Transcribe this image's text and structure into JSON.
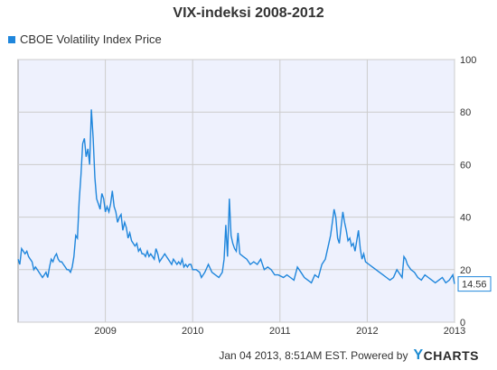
{
  "chart_data": {
    "type": "line",
    "title": "VIX-indeksi 2008-2012",
    "xlabel": "",
    "ylabel": "",
    "legend_position": "top-left",
    "grid": true,
    "ylim": [
      0,
      100
    ],
    "y_ticks": [
      "0",
      "20",
      "40",
      "60",
      "80",
      "100"
    ],
    "xlim": [
      2008.0,
      2013.0
    ],
    "x_ticks": [
      {
        "value": 2009,
        "label": "2009"
      },
      {
        "value": 2010,
        "label": "2010"
      },
      {
        "value": 2011,
        "label": "2011"
      },
      {
        "value": 2012,
        "label": "2012"
      },
      {
        "value": 2013,
        "label": "2013"
      }
    ],
    "last_value_label": "14.56",
    "colors": {
      "line": "#1f86dc",
      "plot_background": "#eef1fd",
      "grid": "#cccccc"
    },
    "series": [
      {
        "name": "CBOE Volatility Index Price",
        "x": [
          2008.0,
          2008.02,
          2008.04,
          2008.06,
          2008.08,
          2008.1,
          2008.12,
          2008.14,
          2008.16,
          2008.18,
          2008.2,
          2008.22,
          2008.24,
          2008.26,
          2008.28,
          2008.3,
          2008.32,
          2008.34,
          2008.36,
          2008.38,
          2008.4,
          2008.42,
          2008.44,
          2008.46,
          2008.48,
          2008.5,
          2008.52,
          2008.54,
          2008.56,
          2008.58,
          2008.6,
          2008.62,
          2008.64,
          2008.66,
          2008.68,
          2008.7,
          2008.72,
          2008.74,
          2008.76,
          2008.78,
          2008.8,
          2008.82,
          2008.84,
          2008.86,
          2008.88,
          2008.9,
          2008.92,
          2008.94,
          2008.96,
          2008.98,
          2009.0,
          2009.02,
          2009.04,
          2009.06,
          2009.08,
          2009.1,
          2009.12,
          2009.14,
          2009.16,
          2009.18,
          2009.2,
          2009.22,
          2009.24,
          2009.26,
          2009.28,
          2009.3,
          2009.32,
          2009.34,
          2009.36,
          2009.38,
          2009.4,
          2009.42,
          2009.44,
          2009.46,
          2009.48,
          2009.5,
          2009.52,
          2009.54,
          2009.56,
          2009.58,
          2009.6,
          2009.62,
          2009.64,
          2009.66,
          2009.68,
          2009.7,
          2009.72,
          2009.74,
          2009.76,
          2009.78,
          2009.8,
          2009.82,
          2009.84,
          2009.86,
          2009.88,
          2009.9,
          2009.92,
          2009.94,
          2009.96,
          2009.98,
          2010.0,
          2010.04,
          2010.08,
          2010.1,
          2010.14,
          2010.18,
          2010.22,
          2010.26,
          2010.3,
          2010.32,
          2010.34,
          2010.36,
          2010.38,
          2010.4,
          2010.42,
          2010.44,
          2010.46,
          2010.48,
          2010.5,
          2010.52,
          2010.54,
          2010.58,
          2010.62,
          2010.66,
          2010.7,
          2010.74,
          2010.78,
          2010.82,
          2010.86,
          2010.9,
          2010.94,
          2010.98,
          2011.04,
          2011.08,
          2011.12,
          2011.16,
          2011.2,
          2011.24,
          2011.28,
          2011.32,
          2011.36,
          2011.4,
          2011.44,
          2011.48,
          2011.52,
          2011.56,
          2011.58,
          2011.6,
          2011.62,
          2011.64,
          2011.66,
          2011.68,
          2011.7,
          2011.72,
          2011.74,
          2011.76,
          2011.78,
          2011.8,
          2011.82,
          2011.84,
          2011.86,
          2011.88,
          2011.9,
          2011.92,
          2011.94,
          2011.96,
          2011.98,
          2012.02,
          2012.06,
          2012.1,
          2012.14,
          2012.18,
          2012.22,
          2012.26,
          2012.3,
          2012.34,
          2012.38,
          2012.4,
          2012.42,
          2012.44,
          2012.46,
          2012.5,
          2012.54,
          2012.58,
          2012.62,
          2012.66,
          2012.7,
          2012.74,
          2012.78,
          2012.82,
          2012.86,
          2012.9,
          2012.94,
          2012.98,
          2013.0
        ],
        "y": [
          24,
          22,
          28,
          27,
          26,
          27,
          25,
          24,
          23,
          20,
          21,
          20,
          19,
          18,
          17,
          18,
          19,
          17,
          21,
          24,
          23,
          25,
          26,
          24,
          23,
          23,
          22,
          21,
          20,
          20,
          19,
          21,
          25,
          33,
          32,
          46,
          56,
          68,
          70,
          63,
          66,
          60,
          81,
          70,
          55,
          47,
          45,
          43,
          49,
          47,
          42,
          44,
          42,
          45,
          50,
          44,
          42,
          38,
          40,
          41,
          35,
          38,
          36,
          32,
          34,
          31,
          30,
          29,
          30,
          27,
          28,
          26,
          26,
          25,
          27,
          25,
          26,
          25,
          24,
          28,
          26,
          23,
          24,
          25,
          26,
          25,
          24,
          23,
          22,
          24,
          23,
          22,
          23,
          22,
          24,
          21,
          22,
          21,
          22,
          22,
          20,
          20,
          19,
          17,
          19,
          22,
          19,
          18,
          17,
          18,
          19,
          24,
          37,
          25,
          47,
          33,
          30,
          28,
          27,
          34,
          26,
          25,
          24,
          22,
          23,
          22,
          24,
          20,
          21,
          20,
          18,
          18,
          17,
          18,
          17,
          16,
          21,
          19,
          17,
          16,
          15,
          18,
          17,
          22,
          24,
          30,
          33,
          38,
          43,
          40,
          32,
          30,
          36,
          42,
          38,
          35,
          31,
          32,
          29,
          30,
          27,
          31,
          35,
          28,
          24,
          26,
          23,
          22,
          21,
          20,
          19,
          18,
          17,
          16,
          17,
          20,
          18,
          17,
          25,
          24,
          22,
          20,
          19,
          17,
          16,
          18,
          17,
          16,
          15,
          16,
          17,
          15,
          16,
          18,
          14.56
        ]
      }
    ]
  },
  "footer": {
    "timestamp": "Jan 04 2013, 8:51AM EST.",
    "powered_by": "Powered by",
    "brand_letter": "Y",
    "brand_rest": "CHARTS"
  }
}
